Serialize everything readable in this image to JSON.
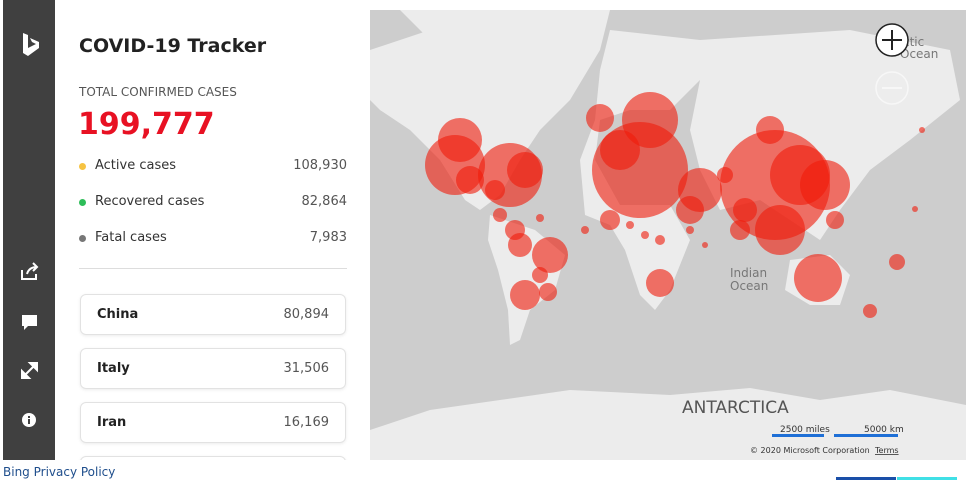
{
  "header": {
    "title": "COVID-19 Tracker"
  },
  "summary": {
    "label": "TOTAL CONFIRMED CASES",
    "total": "199,777",
    "rows": [
      {
        "label": "Active cases",
        "value": "108,930"
      },
      {
        "label": "Recovered cases",
        "value": "82,864"
      },
      {
        "label": "Fatal cases",
        "value": "7,983"
      }
    ]
  },
  "countries": [
    {
      "name": "China",
      "value": "80,894"
    },
    {
      "name": "Italy",
      "value": "31,506"
    },
    {
      "name": "Iran",
      "value": "16,169"
    }
  ],
  "map": {
    "ocean_labels": [
      "ctic",
      "Ocean",
      "Indian",
      "Ocean"
    ],
    "continent": "ANTARCTICA",
    "scale": [
      "2500 miles",
      "5000 km"
    ],
    "copyright": "© 2020 Microsoft Corporation",
    "terms": "Terms"
  },
  "footer": {
    "link": "Bing Privacy Policy"
  }
}
